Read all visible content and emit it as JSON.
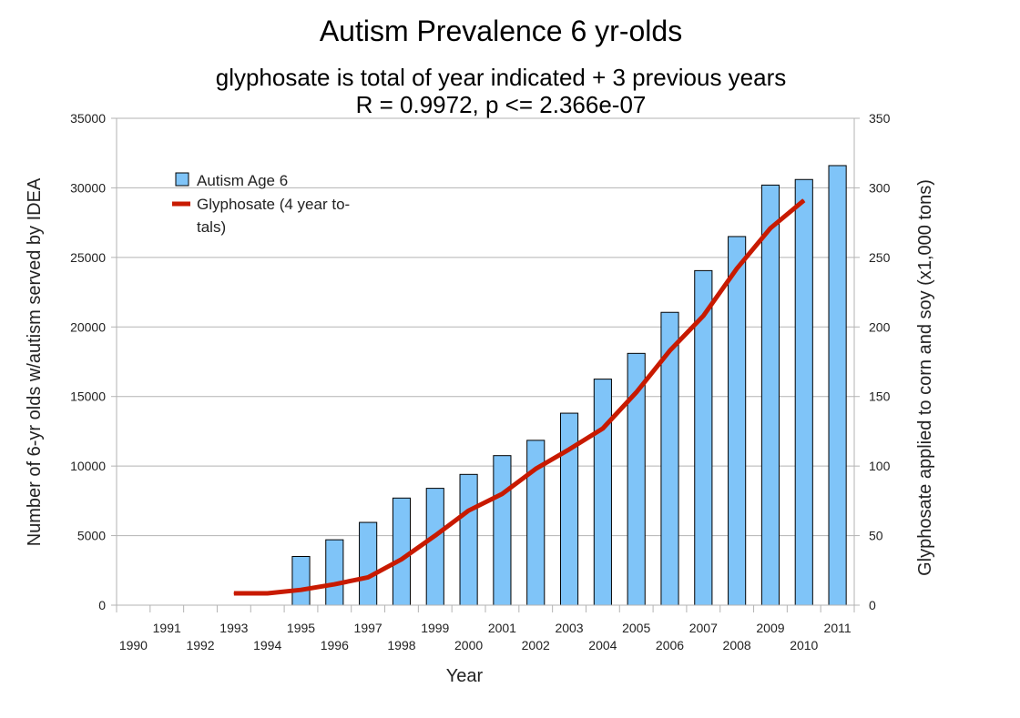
{
  "chart_data": {
    "type": "bar+line",
    "title": "Autism Prevalence 6 yr-olds",
    "subtitle_lines": [
      "glyphosate is total of year indicated + 3 previous years",
      "R = 0.9972, p <= 2.366e-07"
    ],
    "xlabel": "Year",
    "ylabel_left": "Number of 6-yr olds w/autism served by IDEA",
    "ylabel_right": "Glyphosate applied to corn and soy (x1,000 tons)",
    "categories": [
      "1990",
      "1991",
      "1992",
      "1993",
      "1994",
      "1995",
      "1996",
      "1997",
      "1998",
      "1999",
      "2000",
      "2001",
      "2002",
      "2003",
      "2004",
      "2005",
      "2006",
      "2007",
      "2008",
      "2009",
      "2010",
      "2011"
    ],
    "ylim_left": [
      0,
      35000
    ],
    "yticks_left": [
      "0",
      "5000",
      "10000",
      "15000",
      "20000",
      "25000",
      "30000",
      "35000"
    ],
    "ylim_right": [
      0,
      350
    ],
    "yticks_right": [
      "0",
      "50",
      "100",
      "150",
      "200",
      "250",
      "300",
      "350"
    ],
    "series": [
      {
        "name": "Autism Age 6",
        "type": "bar",
        "axis": "left",
        "color": "#7fc4f8",
        "values": [
          null,
          null,
          null,
          null,
          null,
          3500,
          4700,
          5950,
          7700,
          8400,
          9400,
          10750,
          11850,
          13800,
          16250,
          18100,
          21050,
          24050,
          26500,
          30200,
          30600,
          31600
        ]
      },
      {
        "name": "Glyphosate (4 year to-tals)",
        "legend_lines": [
          "Glyphosate (4 year to-",
          "tals)"
        ],
        "type": "line",
        "axis": "right",
        "color": "#c81a00",
        "values": [
          null,
          null,
          null,
          8.5,
          8.5,
          11,
          15,
          20,
          33,
          50,
          68,
          80,
          98,
          112,
          127,
          153,
          183,
          208,
          242,
          271,
          291,
          null
        ]
      }
    ],
    "grid": "horizontal",
    "legend_position": "top-left"
  }
}
